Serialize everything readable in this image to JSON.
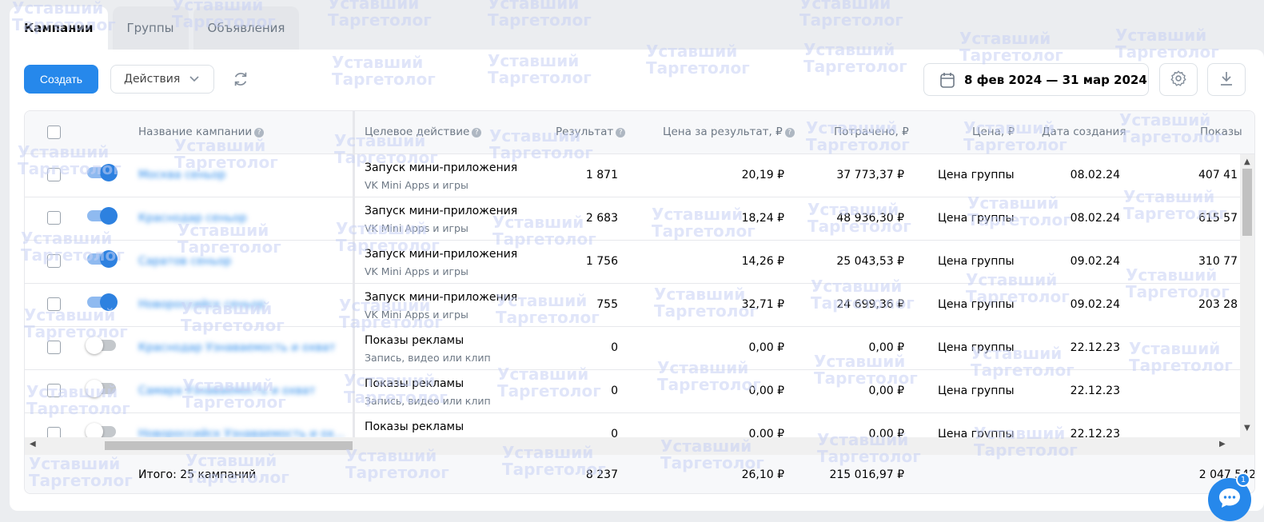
{
  "tabs": [
    {
      "label": "Кампании",
      "active": true
    },
    {
      "label": "Группы",
      "active": false
    },
    {
      "label": "Объявления",
      "active": false
    }
  ],
  "toolbar": {
    "create_label": "Создать",
    "actions_label": "Действия",
    "date_range": "8 фев 2024 — 31 мар 2024"
  },
  "table": {
    "headers": {
      "name": "Название кампании",
      "action": "Целевое действие",
      "result": "Результат",
      "price_per_result": "Цена за результат, ₽",
      "spent": "Потрачено, ₽",
      "price": "Цена, ₽",
      "created": "Дата создания",
      "impressions": "Показы"
    },
    "rows": [
      {
        "enabled": true,
        "name": "Москва сеньор",
        "action": "Запуск мини-приложения",
        "action_sub": "VK Mini Apps и игры",
        "result": "1 871",
        "price_per_result": "20,19 ₽",
        "spent": "37 773,37 ₽",
        "price": "Цена группы",
        "created": "08.02.24",
        "impressions": "407 41"
      },
      {
        "enabled": true,
        "name": "Краснодар сеньор",
        "action": "Запуск мини-приложения",
        "action_sub": "VK Mini Apps и игры",
        "result": "2 683",
        "price_per_result": "18,24 ₽",
        "spent": "48 936,30 ₽",
        "price": "Цена группы",
        "created": "08.02.24",
        "impressions": "615 57"
      },
      {
        "enabled": true,
        "name": "Саратов сеньор",
        "action": "Запуск мини-приложения",
        "action_sub": "VK Mini Apps и игры",
        "result": "1 756",
        "price_per_result": "14,26 ₽",
        "spent": "25 043,53 ₽",
        "price": "Цена группы",
        "created": "09.02.24",
        "impressions": "310 77"
      },
      {
        "enabled": true,
        "name": "Новороссийск сеньор",
        "action": "Запуск мини-приложения",
        "action_sub": "VK Mini Apps и игры",
        "result": "755",
        "price_per_result": "32,71 ₽",
        "spent": "24 699,36 ₽",
        "price": "Цена группы",
        "created": "09.02.24",
        "impressions": "203 28"
      },
      {
        "enabled": false,
        "name": "Краснодар Узнаваемость и охват",
        "action": "Показы рекламы",
        "action_sub": "Запись, видео или клип",
        "result": "0",
        "price_per_result": "0,00 ₽",
        "spent": "0,00 ₽",
        "price": "Цена группы",
        "created": "22.12.23",
        "impressions": ""
      },
      {
        "enabled": false,
        "name": "Самара Узнаваемость и охват",
        "action": "Показы рекламы",
        "action_sub": "Запись, видео или клип",
        "result": "0",
        "price_per_result": "0,00 ₽",
        "spent": "0,00 ₽",
        "price": "Цена группы",
        "created": "22.12.23",
        "impressions": ""
      },
      {
        "enabled": false,
        "name": "Новороссийск Узнаваемость и ох...",
        "action": "Показы рекламы",
        "action_sub": "",
        "result": "0",
        "price_per_result": "0,00 ₽",
        "spent": "0,00 ₽",
        "price": "Цена группы",
        "created": "22.12.23",
        "impressions": ""
      }
    ],
    "footer": {
      "total_label": "Итого: 25 кампаний",
      "result": "8 237",
      "price_per_result": "26,10 ₽",
      "spent": "215 016,97 ₽",
      "impressions": "2 047 542"
    }
  },
  "chat": {
    "badge": "1"
  },
  "watermark": {
    "line1": "Уставший",
    "line2": "Таргетолог"
  },
  "colors": {
    "accent": "#2688eb",
    "background": "#ebedf0"
  }
}
